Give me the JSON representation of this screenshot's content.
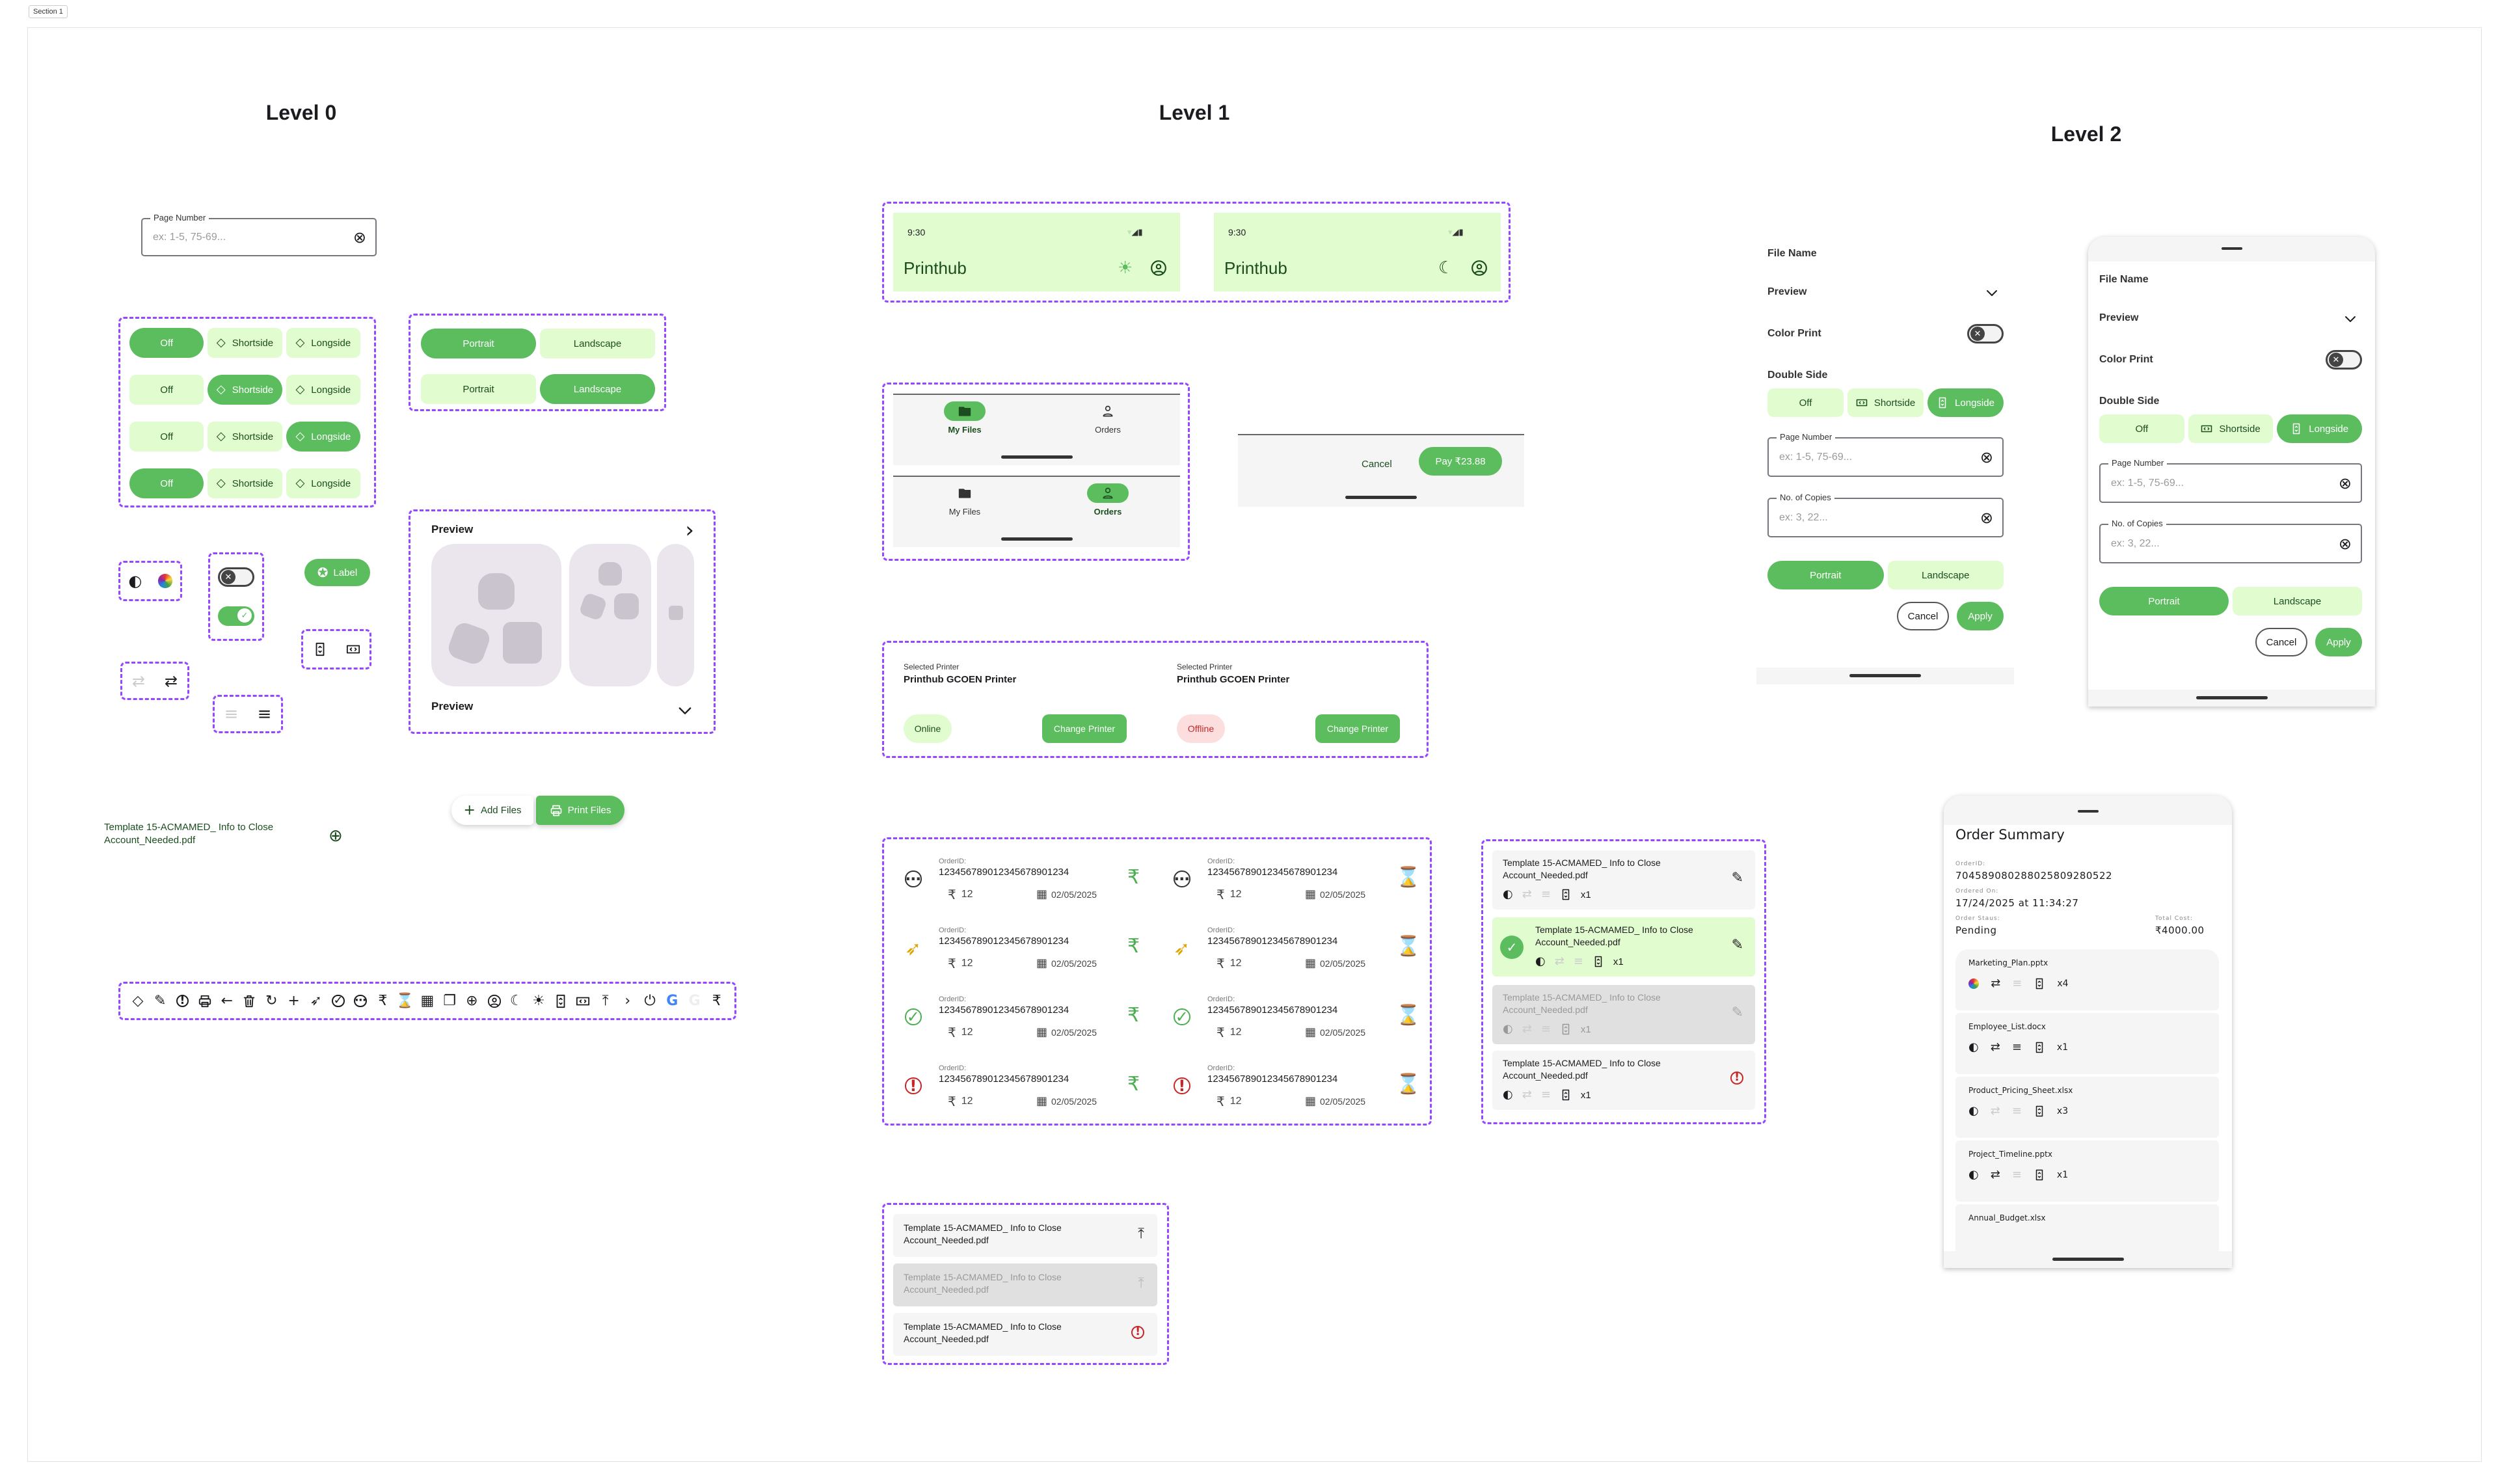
{
  "canvas": {
    "section_label": "Section 1"
  },
  "levels": [
    "Level 0",
    "Level 1",
    "Level 2"
  ],
  "colors": {
    "primary": "#5BBD5E",
    "primary_container": "#E1FCCF",
    "on_container": "#1B4D1F",
    "frame_dash": "#9747FF",
    "error": "#C62828",
    "warning": "#E0A400",
    "surface": "#F5F5F5",
    "preview_card": "#EBE6EE"
  },
  "level0": {
    "page_number": {
      "label": "Page Number",
      "placeholder": "ex: 1-5, 75-69..."
    },
    "double_side": {
      "options": [
        "Off",
        "Shortside",
        "Longside"
      ],
      "rows_selected": [
        0,
        1,
        2,
        0
      ]
    },
    "orientation": {
      "options": [
        "Portrait",
        "Landscape"
      ],
      "rows_selected": [
        0,
        1
      ]
    },
    "color_icons": [
      "contrast",
      "color-palette"
    ],
    "switches": [
      {
        "state": "off"
      },
      {
        "state": "on"
      }
    ],
    "chip": {
      "label": "Label",
      "icon": "star-circle"
    },
    "paper_icons": [
      "longside-page",
      "shortside-page"
    ],
    "swap_icons": [
      {
        "icon": "swap",
        "enabled": false
      },
      {
        "icon": "swap",
        "enabled": true
      }
    ],
    "align_icons": [
      {
        "icon": "align",
        "enabled": false
      },
      {
        "icon": "align",
        "enabled": true
      }
    ],
    "preview": {
      "title_expanded": "Preview",
      "title_collapsed": "Preview"
    },
    "fab": {
      "add_label": "Add Files",
      "print_label": "Print Files"
    },
    "file_item": {
      "name": "Template 15-ACMAMED_ Info to Close Account_Needed.pdf"
    },
    "icon_strip": [
      "diamond",
      "pencil",
      "alert-circle",
      "printer",
      "arrow-left",
      "trash",
      "refresh",
      "plus",
      "rocket",
      "verified",
      "more-circle",
      "rupee",
      "hourglass",
      "calendar",
      "file-copy",
      "plus-circle",
      "account-circle",
      "moon",
      "sun",
      "longside-page",
      "shortside-page",
      "upload",
      "chevron-right",
      "power",
      "google",
      "google-faint",
      "rupee"
    ]
  },
  "level1": {
    "headers": [
      {
        "time": "9:30",
        "title": "Printhub",
        "theme_icon": "sun"
      },
      {
        "time": "9:30",
        "title": "Printhub",
        "theme_icon": "moon"
      }
    ],
    "nav": {
      "items": [
        "My Files",
        "Orders"
      ],
      "item_icons": [
        "folder",
        "person"
      ],
      "selected_per_bar": [
        0,
        1
      ]
    },
    "pay_bar": {
      "cancel": "Cancel",
      "pay": "Pay  ₹23.88"
    },
    "printers": [
      {
        "caption": "Selected Printer",
        "name": "Printhub GCOEN Printer",
        "status": "Online",
        "online": true,
        "action": "Change Printer"
      },
      {
        "caption": "Selected Printer",
        "name": "Printhub GCOEN Printer",
        "status": "Offline",
        "online": false,
        "action": "Change Printer"
      }
    ],
    "orders": {
      "caption": "OrderID:",
      "rows": [
        {
          "status_icon": "more-circle",
          "status": "processing"
        },
        {
          "status_icon": "rocket",
          "status": "in-progress"
        },
        {
          "status_icon": "verified",
          "status": "completed"
        },
        {
          "status_icon": "alert-circle",
          "status": "failed"
        }
      ],
      "columns": [
        {
          "trailing_icon": "rupee",
          "trailing_color": "#4CAF50"
        },
        {
          "trailing_icon": "hourglass",
          "trailing_color": "#C62828"
        }
      ],
      "order_id": "123456789012345678901234",
      "amount": "12",
      "date": "02/05/2025"
    },
    "file_cards": [
      {
        "name": "Template 15-ACMAMED_ Info to Close Account_Needed.pdf",
        "copies": "x1",
        "state": "default",
        "action_icon": "pencil"
      },
      {
        "name": "Template 15-ACMAMED_ Info to Close Account_Needed.pdf",
        "copies": "x1",
        "state": "selected",
        "action_icon": "pencil"
      },
      {
        "name": "Template 15-ACMAMED_ Info to Close Account_Needed.pdf",
        "copies": "x1",
        "state": "disabled",
        "action_icon": "pencil"
      },
      {
        "name": "Template 15-ACMAMED_ Info to Close Account_Needed.pdf",
        "copies": "x1",
        "state": "error",
        "action_icon": "alert-circle"
      }
    ],
    "upload_items": [
      {
        "name": "Template 15-ACMAMED_ Info to Close Account_Needed.pdf",
        "state": "default",
        "icon": "upload"
      },
      {
        "name": "Template 15-ACMAMED_ Info to Close Account_Needed.pdf",
        "state": "disabled",
        "icon": "upload"
      },
      {
        "name": "Template 15-ACMAMED_ Info to Close Account_Needed.pdf",
        "state": "error",
        "icon": "alert-circle"
      }
    ]
  },
  "level2": {
    "settings": {
      "file_name": "File Name",
      "preview": "Preview",
      "color_print": "Color Print",
      "color_print_on": false,
      "double_side": "Double Side",
      "double_side_options": [
        "Off",
        "Shortside",
        "Longside"
      ],
      "double_side_selected": 2,
      "page_number": {
        "label": "Page Number",
        "placeholder": "ex: 1-5, 75-69..."
      },
      "copies": {
        "label": "No. of Copies",
        "placeholder": "ex: 3, 22..."
      },
      "orientation_options": [
        "Portrait",
        "Landscape"
      ],
      "orientation_selected": 0,
      "cancel": "Cancel",
      "apply": "Apply"
    },
    "order_summary": {
      "title": "Order Summary",
      "order_id_label": "OrderID:",
      "order_id": "704589080288025809280522",
      "ordered_on_label": "Ordered On:",
      "ordered_on": "17/24/2025 at 11:34:27",
      "status_label": "Order Staus:",
      "status": "Pending",
      "total_label": "Total Cost:",
      "total": "₹4000.00",
      "files": [
        {
          "name": "Marketing_Plan.pptx",
          "color": true,
          "swap": true,
          "align": false,
          "copies": "x4"
        },
        {
          "name": "Employee_List.docx",
          "color": false,
          "swap": true,
          "align": true,
          "copies": "x1"
        },
        {
          "name": "Product_Pricing_Sheet.xlsx",
          "color": false,
          "swap": false,
          "align": false,
          "copies": "x3"
        },
        {
          "name": "Project_Timeline.pptx",
          "color": false,
          "swap": true,
          "align": false,
          "copies": "x1"
        },
        {
          "name": "Annual_Budget.xlsx"
        }
      ]
    }
  }
}
